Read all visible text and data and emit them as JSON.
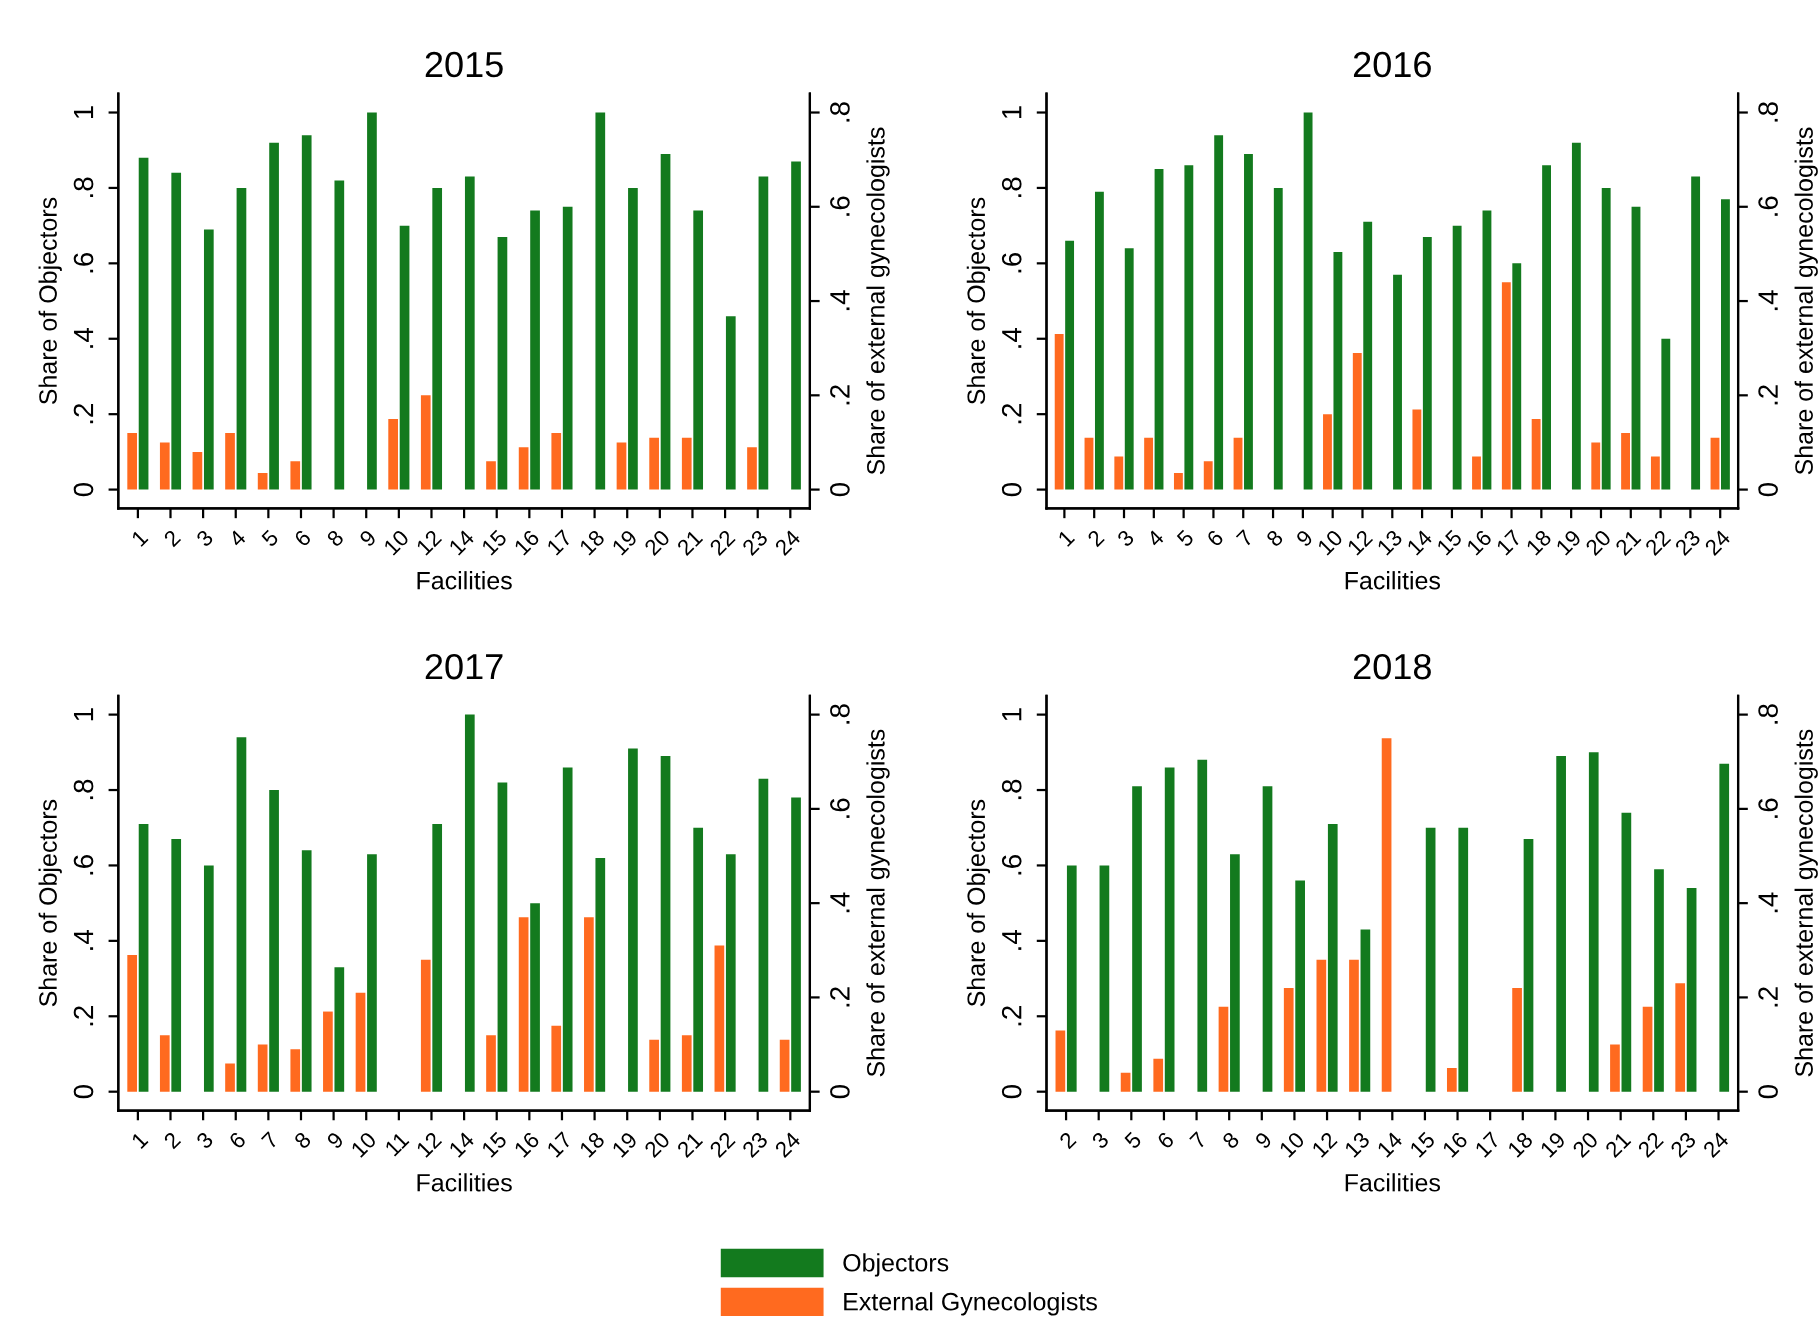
{
  "chart_data": [
    {
      "type": "bar",
      "title": "2015",
      "legend": "bottom",
      "xlabel": "Facilities",
      "ylabel": "Share of Objectors",
      "y2label": "Share of external gynecologists",
      "categories": [
        "1",
        "2",
        "3",
        "4",
        "5",
        "6",
        "8",
        "9",
        "10",
        "12",
        "14",
        "15",
        "16",
        "17",
        "18",
        "19",
        "20",
        "21",
        "22",
        "23",
        "24"
      ],
      "series": [
        {
          "name": "External Gynecologists",
          "color": "#ff6a1f",
          "axis": "y2",
          "values": [
            0.12,
            0.1,
            0.08,
            0.12,
            0.035,
            0.06,
            null,
            null,
            0.15,
            0.2,
            null,
            0.06,
            0.09,
            0.12,
            null,
            0.1,
            0.11,
            0.11,
            null,
            0.09,
            null
          ]
        },
        {
          "name": "Objectors",
          "color": "#137a1e",
          "values": [
            0.88,
            0.84,
            0.69,
            0.8,
            0.92,
            0.94,
            0.82,
            1.0,
            0.7,
            0.8,
            0.83,
            0.67,
            0.74,
            0.75,
            1.0,
            0.8,
            0.89,
            0.74,
            0.46,
            0.83,
            0.87
          ]
        }
      ],
      "ylim": [
        -0.05,
        1.05
      ],
      "yticks": [
        0,
        {
          "value": 0.2,
          "label": ".2"
        },
        {
          "value": 0.4,
          "label": ".4"
        },
        {
          "value": 0.6,
          "label": ".6"
        },
        {
          "value": 0.8,
          "label": ".8"
        },
        1
      ],
      "y2lim": [
        -0.04,
        0.84
      ],
      "y2ticks": [
        0,
        {
          "value": 0.2,
          "label": ".2"
        },
        {
          "value": 0.4,
          "label": ".4"
        },
        {
          "value": 0.6,
          "label": ".6"
        },
        {
          "value": 0.8,
          "label": ".8"
        }
      ]
    },
    {
      "type": "bar",
      "title": "2016",
      "xlabel": "Facilities",
      "ylabel": "Share of Objectors",
      "y2label": "Share of external gynecologists",
      "categories": [
        "1",
        "2",
        "3",
        "4",
        "5",
        "6",
        "7",
        "8",
        "9",
        "10",
        "12",
        "13",
        "14",
        "15",
        "16",
        "17",
        "18",
        "19",
        "20",
        "21",
        "22",
        "23",
        "24"
      ],
      "series": [
        {
          "color": "#ff6a1f",
          "axis": "y2",
          "values": [
            0.33,
            0.11,
            0.07,
            0.11,
            0.035,
            0.06,
            0.11,
            null,
            null,
            0.16,
            0.29,
            null,
            0.17,
            null,
            0.07,
            0.44,
            0.15,
            null,
            0.1,
            0.12,
            0.07,
            null,
            0.11
          ]
        },
        {
          "color": "#137a1e",
          "values": [
            0.66,
            0.79,
            0.64,
            0.85,
            0.86,
            0.94,
            0.89,
            0.8,
            1.0,
            0.63,
            0.71,
            0.57,
            0.67,
            0.7,
            0.74,
            0.6,
            0.86,
            0.92,
            0.8,
            0.75,
            0.4,
            0.83,
            0.77
          ]
        }
      ],
      "ylim": [
        -0.05,
        1.05
      ],
      "yticks": [
        0,
        {
          "value": 0.2,
          "label": ".2"
        },
        {
          "value": 0.4,
          "label": ".4"
        },
        {
          "value": 0.6,
          "label": ".6"
        },
        {
          "value": 0.8,
          "label": ".8"
        },
        1
      ],
      "y2lim": [
        -0.04,
        0.84
      ],
      "y2ticks": [
        0,
        {
          "value": 0.2,
          "label": ".2"
        },
        {
          "value": 0.4,
          "label": ".4"
        },
        {
          "value": 0.6,
          "label": ".6"
        },
        {
          "value": 0.8,
          "label": ".8"
        }
      ]
    },
    {
      "type": "bar",
      "title": "2017",
      "xlabel": "Facilities",
      "ylabel": "Share of Objectors",
      "y2label": "Share of external gynecologists",
      "categories": [
        "1",
        "2",
        "3",
        "6",
        "7",
        "8",
        "9",
        "10",
        "11",
        "12",
        "14",
        "15",
        "16",
        "17",
        "18",
        "19",
        "20",
        "21",
        "22",
        "23",
        "24"
      ],
      "series": [
        {
          "color": "#ff6a1f",
          "axis": "y2",
          "values": [
            0.29,
            0.12,
            null,
            0.06,
            0.1,
            0.09,
            0.17,
            0.21,
            null,
            0.28,
            null,
            0.12,
            0.37,
            0.14,
            0.37,
            null,
            0.11,
            0.12,
            0.31,
            null,
            0.11
          ]
        },
        {
          "color": "#137a1e",
          "values": [
            0.71,
            0.67,
            0.6,
            0.94,
            0.8,
            0.64,
            0.33,
            0.63,
            null,
            0.71,
            1.0,
            0.82,
            0.5,
            0.86,
            0.62,
            0.91,
            0.89,
            0.7,
            0.63,
            0.83,
            0.78
          ]
        }
      ],
      "ylim": [
        -0.05,
        1.05
      ],
      "yticks": [
        0,
        {
          "value": 0.2,
          "label": ".2"
        },
        {
          "value": 0.4,
          "label": ".4"
        },
        {
          "value": 0.6,
          "label": ".6"
        },
        {
          "value": 0.8,
          "label": ".8"
        },
        1
      ],
      "y2lim": [
        -0.04,
        0.84
      ],
      "y2ticks": [
        0,
        {
          "value": 0.2,
          "label": ".2"
        },
        {
          "value": 0.4,
          "label": ".4"
        },
        {
          "value": 0.6,
          "label": ".6"
        },
        {
          "value": 0.8,
          "label": ".8"
        }
      ]
    },
    {
      "type": "bar",
      "title": "2018",
      "xlabel": "Facilities",
      "ylabel": "Share of Objectors",
      "y2label": "Share of external gynecologists",
      "categories": [
        "2",
        "3",
        "5",
        "6",
        "7",
        "8",
        "9",
        "10",
        "12",
        "13",
        "14",
        "15",
        "16",
        "17",
        "18",
        "19",
        "20",
        "21",
        "22",
        "23",
        "24"
      ],
      "series": [
        {
          "color": "#ff6a1f",
          "axis": "y2",
          "values": [
            0.13,
            null,
            0.04,
            0.07,
            null,
            0.18,
            null,
            0.22,
            0.28,
            0.28,
            0.75,
            null,
            0.05,
            null,
            0.22,
            null,
            null,
            0.1,
            0.18,
            0.23,
            null
          ]
        },
        {
          "color": "#137a1e",
          "values": [
            0.6,
            0.6,
            0.81,
            0.86,
            0.88,
            0.63,
            0.81,
            0.56,
            0.71,
            0.43,
            null,
            0.7,
            0.7,
            null,
            0.67,
            0.89,
            0.9,
            0.74,
            0.59,
            0.54,
            0.87
          ]
        }
      ],
      "ylim": [
        -0.05,
        1.05
      ],
      "yticks": [
        0,
        {
          "value": 0.2,
          "label": ".2"
        },
        {
          "value": 0.4,
          "label": ".4"
        },
        {
          "value": 0.6,
          "label": ".6"
        },
        {
          "value": 0.8,
          "label": ".8"
        },
        1
      ],
      "y2lim": [
        -0.04,
        0.84
      ],
      "y2ticks": [
        0,
        {
          "value": 0.2,
          "label": ".2"
        },
        {
          "value": 0.4,
          "label": ".4"
        },
        {
          "value": 0.6,
          "label": ".6"
        },
        {
          "value": 0.8,
          "label": ".8"
        }
      ]
    }
  ]
}
